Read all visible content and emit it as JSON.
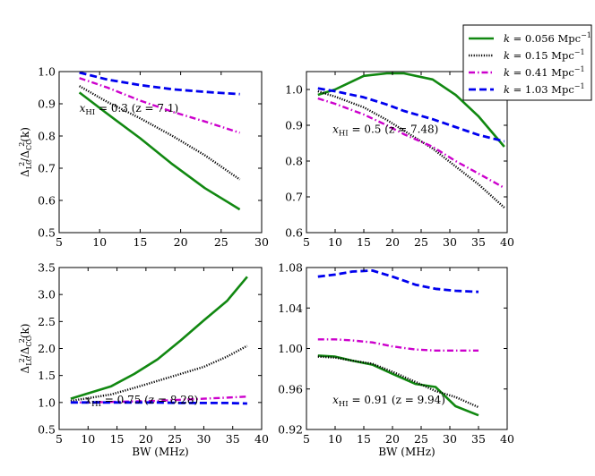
{
  "chart_data": [
    {
      "type": "line",
      "panel": "top-left",
      "annotation": "x_HI = 0.3 (z = 7.1)",
      "annotation_parts": {
        "var": "x",
        "sub": "HI",
        "rest": " = 0.3 (z = 7.1)"
      },
      "xlim": [
        5,
        30
      ],
      "ylim": [
        0.5,
        1.0
      ],
      "xticks": [
        5,
        10,
        15,
        20,
        25,
        30
      ],
      "xtick_labels": [
        "5",
        "10",
        "15",
        "20",
        "25",
        "30"
      ],
      "yticks": [
        0.5,
        0.6,
        0.7,
        0.8,
        0.9,
        1.0
      ],
      "ytick_labels": [
        "0.5",
        "0.6",
        "0.7",
        "0.8",
        "0.9",
        "1.0"
      ],
      "xlabel": "",
      "ylabel": "Δ²_LC / Δ²_CC(k)",
      "series": [
        {
          "name": "k = 0.056 Mpc^-1",
          "x": [
            7.5,
            11,
            15,
            19,
            23,
            27.3
          ],
          "y": [
            0.935,
            0.868,
            0.793,
            0.712,
            0.638,
            0.572
          ]
        },
        {
          "name": "k = 0.15 Mpc^-1",
          "x": [
            7.5,
            11,
            15,
            19,
            23,
            27.3
          ],
          "y": [
            0.955,
            0.905,
            0.855,
            0.8,
            0.74,
            0.665
          ]
        },
        {
          "name": "k = 0.41 Mpc^-1",
          "x": [
            7.5,
            11,
            15,
            19,
            23,
            27.3
          ],
          "y": [
            0.98,
            0.95,
            0.91,
            0.875,
            0.845,
            0.81
          ]
        },
        {
          "name": "k = 1.03 Mpc^-1",
          "x": [
            7.5,
            11,
            15,
            19,
            23,
            27.3
          ],
          "y": [
            0.997,
            0.975,
            0.958,
            0.945,
            0.937,
            0.93
          ]
        }
      ]
    },
    {
      "type": "line",
      "panel": "top-right",
      "annotation": "x_HI = 0.5 (z = 7.48)",
      "annotation_parts": {
        "var": "x",
        "sub": "HI",
        "rest": " = 0.5 (z = 7.48)"
      },
      "xlim": [
        5,
        40
      ],
      "ylim": [
        0.6,
        1.05
      ],
      "xticks": [
        5,
        10,
        15,
        20,
        25,
        30,
        35,
        40
      ],
      "xtick_labels": [
        "5",
        "10",
        "15",
        "20",
        "25",
        "30",
        "35",
        "40"
      ],
      "yticks": [
        0.6,
        0.7,
        0.8,
        0.9,
        1.0
      ],
      "ytick_labels": [
        "0.6",
        "0.7",
        "0.8",
        "0.9",
        "1.0"
      ],
      "xlabel": "",
      "ylabel": "",
      "series": [
        {
          "name": "k = 0.056 Mpc^-1",
          "x": [
            7,
            10,
            15,
            19,
            22,
            27,
            31,
            35,
            39.5
          ],
          "y": [
            0.985,
            1.0,
            1.038,
            1.045,
            1.045,
            1.028,
            0.985,
            0.925,
            0.84
          ]
        },
        {
          "name": "k = 0.15 Mpc^-1",
          "x": [
            7,
            10,
            15,
            19,
            22,
            27,
            31,
            35,
            39.5
          ],
          "y": [
            0.995,
            0.98,
            0.95,
            0.915,
            0.885,
            0.835,
            0.785,
            0.735,
            0.67
          ]
        },
        {
          "name": "k = 0.41 Mpc^-1",
          "x": [
            7,
            10,
            15,
            19,
            22,
            27,
            31,
            35,
            39.5
          ],
          "y": [
            0.975,
            0.96,
            0.93,
            0.9,
            0.875,
            0.84,
            0.8,
            0.765,
            0.725
          ]
        },
        {
          "name": "k = 1.03 Mpc^-1",
          "x": [
            7,
            10,
            15,
            19,
            22,
            27,
            31,
            35,
            39.5
          ],
          "y": [
            1.003,
            0.995,
            0.978,
            0.958,
            0.94,
            0.917,
            0.895,
            0.873,
            0.855
          ]
        }
      ]
    },
    {
      "type": "line",
      "panel": "bottom-left",
      "annotation": "x_HI = 0.75 (z = 8.28)",
      "annotation_parts": {
        "var": "x",
        "sub": "HI",
        "rest": " = 0.75 (z = 8.28)"
      },
      "xlim": [
        5,
        40
      ],
      "ylim": [
        0.5,
        3.5
      ],
      "xticks": [
        5,
        10,
        15,
        20,
        25,
        30,
        35,
        40
      ],
      "xtick_labels": [
        "5",
        "10",
        "15",
        "20",
        "25",
        "30",
        "35",
        "40"
      ],
      "yticks": [
        0.5,
        1.0,
        1.5,
        2.0,
        2.5,
        3.0,
        3.5
      ],
      "ytick_labels": [
        "0.5",
        "1.0",
        "1.5",
        "2.0",
        "2.5",
        "3.0",
        "3.5"
      ],
      "xlabel": "BW (MHz)",
      "ylabel": "Δ²_LC / Δ²_CC(k)",
      "series": [
        {
          "name": "k = 0.056 Mpc^-1",
          "x": [
            7,
            10,
            14,
            18,
            22,
            26,
            30,
            34,
            37.5
          ],
          "y": [
            1.07,
            1.17,
            1.3,
            1.53,
            1.8,
            2.15,
            2.52,
            2.88,
            3.33
          ]
        },
        {
          "name": "k = 0.15 Mpc^-1",
          "x": [
            7,
            10,
            14,
            18,
            22,
            26,
            30,
            34,
            37.5
          ],
          "y": [
            1.03,
            1.08,
            1.15,
            1.27,
            1.4,
            1.53,
            1.66,
            1.85,
            2.05
          ]
        },
        {
          "name": "k = 0.41 Mpc^-1",
          "x": [
            7,
            10,
            14,
            18,
            22,
            26,
            30,
            34,
            37.5
          ],
          "y": [
            1.0,
            1.0,
            1.01,
            1.02,
            1.03,
            1.05,
            1.07,
            1.09,
            1.11
          ]
        },
        {
          "name": "k = 1.03 Mpc^-1",
          "x": [
            7,
            10,
            14,
            18,
            22,
            26,
            30,
            34,
            37.5
          ],
          "y": [
            1.0,
            1.0,
            1.0,
            1.0,
            1.0,
            0.99,
            0.99,
            0.99,
            0.98
          ]
        }
      ]
    },
    {
      "type": "line",
      "panel": "bottom-right",
      "annotation": "x_HI = 0.91 (z = 9.94)",
      "annotation_parts": {
        "var": "x",
        "sub": "HI",
        "rest": " = 0.91 (z = 9.94)"
      },
      "xlim": [
        5,
        40
      ],
      "ylim": [
        0.92,
        1.08
      ],
      "xticks": [
        5,
        10,
        15,
        20,
        25,
        30,
        35,
        40
      ],
      "xtick_labels": [
        "5",
        "10",
        "15",
        "20",
        "25",
        "30",
        "35",
        "40"
      ],
      "yticks": [
        0.92,
        0.96,
        1.0,
        1.04,
        1.08
      ],
      "ytick_labels": [
        "0.92",
        "0.96",
        "1.00",
        "1.04",
        "1.08"
      ],
      "xlabel": "BW (MHz)",
      "ylabel": "",
      "series": [
        {
          "name": "k = 0.056 Mpc^-1",
          "x": [
            7,
            10,
            13,
            16.5,
            20,
            24,
            27.5,
            31,
            35
          ],
          "y": [
            0.993,
            0.992,
            0.988,
            0.984,
            0.975,
            0.965,
            0.962,
            0.943,
            0.934
          ]
        },
        {
          "name": "k = 0.15 Mpc^-1",
          "x": [
            7,
            10,
            13,
            16.5,
            20,
            24,
            27.5,
            31,
            35
          ],
          "y": [
            0.992,
            0.991,
            0.988,
            0.985,
            0.977,
            0.967,
            0.958,
            0.952,
            0.942
          ]
        },
        {
          "name": "k = 0.41 Mpc^-1",
          "x": [
            7,
            10,
            13,
            16.5,
            20,
            24,
            27.5,
            31,
            35
          ],
          "y": [
            1.009,
            1.009,
            1.008,
            1.006,
            1.002,
            0.999,
            0.998,
            0.998,
            0.998
          ]
        },
        {
          "name": "k = 1.03 Mpc^-1",
          "x": [
            7,
            10,
            13,
            16.5,
            20,
            24,
            27.5,
            31,
            35
          ],
          "y": [
            1.071,
            1.073,
            1.076,
            1.077,
            1.071,
            1.063,
            1.059,
            1.057,
            1.056
          ]
        }
      ]
    }
  ],
  "legend": {
    "placement": "top-right",
    "entries": [
      {
        "label": "k = 0.056 Mpc^-1",
        "kval": "0.056",
        "unit": "Mpc",
        "exp": "−1",
        "color": "#118811",
        "style": "solid"
      },
      {
        "label": "k = 0.15 Mpc^-1",
        "kval": "0.15",
        "unit": "Mpc",
        "exp": "−1",
        "color": "#000000",
        "style": "dotted"
      },
      {
        "label": "k = 0.41 Mpc^-1",
        "kval": "0.41",
        "unit": "Mpc",
        "exp": "−1",
        "color": "#cc00cc",
        "style": "dashdot"
      },
      {
        "label": "k = 1.03 Mpc^-1",
        "kval": "1.03",
        "unit": "Mpc",
        "exp": "−1",
        "color": "#0000ee",
        "style": "dashed"
      }
    ]
  },
  "ylabel_parts": {
    "num": "Δ",
    "num_sup": "2",
    "num_sub": "LC",
    "den": "Δ",
    "den_sup": "2",
    "den_sub": "CC",
    "tail": "(k)"
  }
}
